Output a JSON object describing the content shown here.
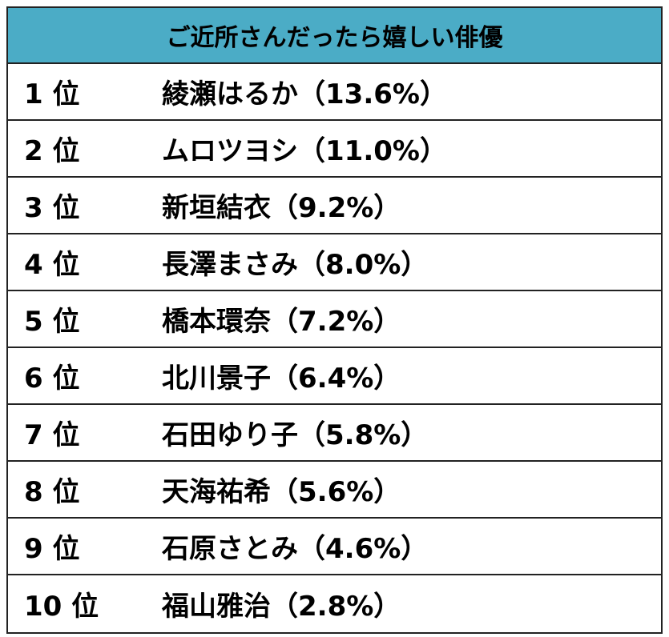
{
  "table": {
    "title": "ご近所さんだったら嬉しい俳優",
    "header_color": "#4bacc6",
    "rows": [
      {
        "rank": "1 位",
        "entry": "綾瀬はるか（13.6%）"
      },
      {
        "rank": "2 位",
        "entry": "ムロツヨシ（11.0%）"
      },
      {
        "rank": "3 位",
        "entry": "新垣結衣（9.2%）"
      },
      {
        "rank": "4 位",
        "entry": "長澤まさみ（8.0%）"
      },
      {
        "rank": "5 位",
        "entry": "橋本環奈（7.2%）"
      },
      {
        "rank": "6 位",
        "entry": "北川景子（6.4%）"
      },
      {
        "rank": "7 位",
        "entry": "石田ゆり子（5.8%）"
      },
      {
        "rank": "8 位",
        "entry": "天海祐希（5.6%）"
      },
      {
        "rank": "9 位",
        "entry": "石原さとみ（4.6%）"
      },
      {
        "rank": "10 位",
        "entry": "福山雅治（2.8%）"
      }
    ]
  }
}
